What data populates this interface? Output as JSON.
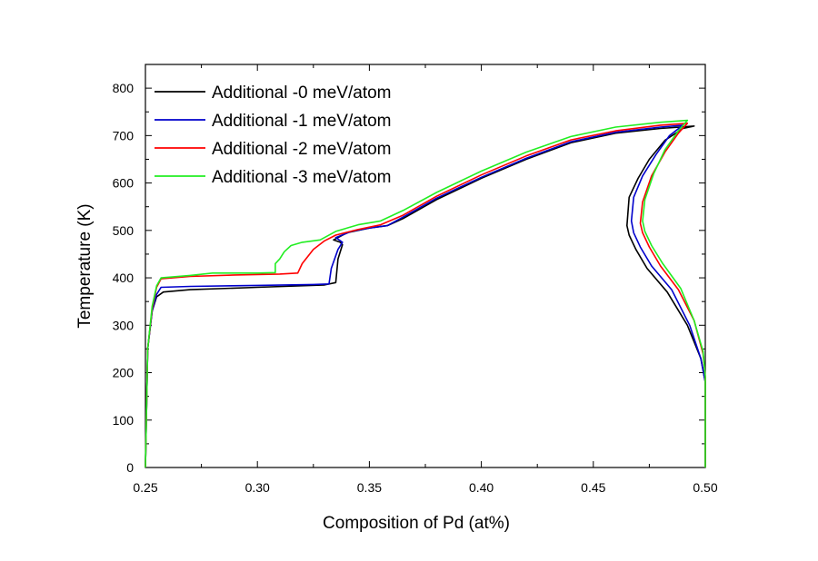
{
  "chart_data": {
    "type": "line",
    "title": "",
    "xlabel": "Composition of Pd (at%)",
    "ylabel": "Temperature (K)",
    "xlim": [
      0.25,
      0.5
    ],
    "ylim": [
      0,
      850
    ],
    "xticks": [
      "0.25",
      "0.30",
      "0.35",
      "0.40",
      "0.45",
      "0.50"
    ],
    "xtick_values": [
      0.25,
      0.3,
      0.35,
      0.4,
      0.45,
      0.5
    ],
    "yticks": [
      "0",
      "100",
      "200",
      "300",
      "400",
      "500",
      "600",
      "700",
      "800"
    ],
    "ytick_values": [
      0,
      100,
      200,
      300,
      400,
      500,
      600,
      700,
      800
    ],
    "grid": false,
    "legend_position": "top-left",
    "series": [
      {
        "name": "Additional -0 meV/atom",
        "color": "#000000",
        "x": [
          0.25,
          0.251,
          0.253,
          0.255,
          0.258,
          0.27,
          0.3,
          0.33,
          0.335,
          0.336,
          0.338,
          0.337,
          0.334,
          0.34,
          0.35,
          0.358,
          0.365,
          0.38,
          0.4,
          0.42,
          0.44,
          0.46,
          0.48,
          0.495,
          0.49,
          0.482,
          0.475,
          0.47,
          0.466,
          0.465,
          0.466,
          0.469,
          0.474,
          0.483,
          0.492,
          0.498,
          0.5,
          0.5
        ],
        "y": [
          0,
          250,
          330,
          360,
          370,
          375,
          380,
          385,
          390,
          440,
          470,
          475,
          480,
          495,
          505,
          510,
          525,
          565,
          610,
          650,
          685,
          705,
          715,
          720,
          715,
          690,
          650,
          610,
          570,
          510,
          490,
          460,
          420,
          370,
          300,
          230,
          180,
          0
        ]
      },
      {
        "name": "Additional -1 meV/atom",
        "color": "#0000cc",
        "x": [
          0.25,
          0.251,
          0.253,
          0.255,
          0.257,
          0.27,
          0.3,
          0.325,
          0.332,
          0.333,
          0.336,
          0.338,
          0.335,
          0.342,
          0.35,
          0.358,
          0.365,
          0.38,
          0.4,
          0.42,
          0.44,
          0.46,
          0.48,
          0.49,
          0.484,
          0.478,
          0.472,
          0.468,
          0.467,
          0.468,
          0.471,
          0.476,
          0.485,
          0.493,
          0.498,
          0.5,
          0.5
        ],
        "y": [
          0,
          250,
          330,
          365,
          380,
          382,
          384,
          386,
          387,
          420,
          460,
          475,
          485,
          498,
          505,
          510,
          528,
          568,
          612,
          652,
          687,
          707,
          718,
          722,
          700,
          660,
          615,
          570,
          520,
          495,
          465,
          425,
          375,
          300,
          230,
          180,
          0
        ]
      },
      {
        "name": "Additional -2 meV/atom",
        "color": "#ff0000",
        "x": [
          0.25,
          0.251,
          0.253,
          0.255,
          0.257,
          0.27,
          0.29,
          0.31,
          0.318,
          0.32,
          0.325,
          0.33,
          0.335,
          0.345,
          0.355,
          0.365,
          0.38,
          0.4,
          0.42,
          0.44,
          0.46,
          0.48,
          0.492,
          0.488,
          0.482,
          0.476,
          0.472,
          0.471,
          0.472,
          0.475,
          0.48,
          0.488,
          0.495,
          0.499,
          0.5,
          0.5
        ],
        "y": [
          0,
          250,
          335,
          380,
          398,
          403,
          406,
          408,
          410,
          430,
          460,
          478,
          490,
          502,
          512,
          532,
          572,
          617,
          657,
          691,
          710,
          722,
          726,
          705,
          665,
          615,
          560,
          515,
          495,
          465,
          425,
          375,
          310,
          240,
          190,
          0
        ]
      },
      {
        "name": "Additional -3 meV/atom",
        "color": "#22ee22",
        "x": [
          0.25,
          0.251,
          0.253,
          0.255,
          0.257,
          0.27,
          0.28,
          0.3,
          0.308,
          0.308,
          0.31,
          0.312,
          0.315,
          0.32,
          0.328,
          0.335,
          0.345,
          0.355,
          0.365,
          0.38,
          0.4,
          0.42,
          0.44,
          0.46,
          0.48,
          0.492,
          0.488,
          0.482,
          0.477,
          0.473,
          0.472,
          0.473,
          0.476,
          0.481,
          0.489,
          0.495,
          0.499,
          0.5,
          0.5
        ],
        "y": [
          0,
          250,
          340,
          383,
          400,
          405,
          410,
          410,
          411,
          430,
          440,
          455,
          468,
          475,
          480,
          498,
          512,
          520,
          542,
          580,
          625,
          665,
          698,
          718,
          728,
          732,
          710,
          670,
          620,
          565,
          520,
          498,
          468,
          430,
          378,
          310,
          245,
          190,
          0
        ]
      }
    ]
  }
}
